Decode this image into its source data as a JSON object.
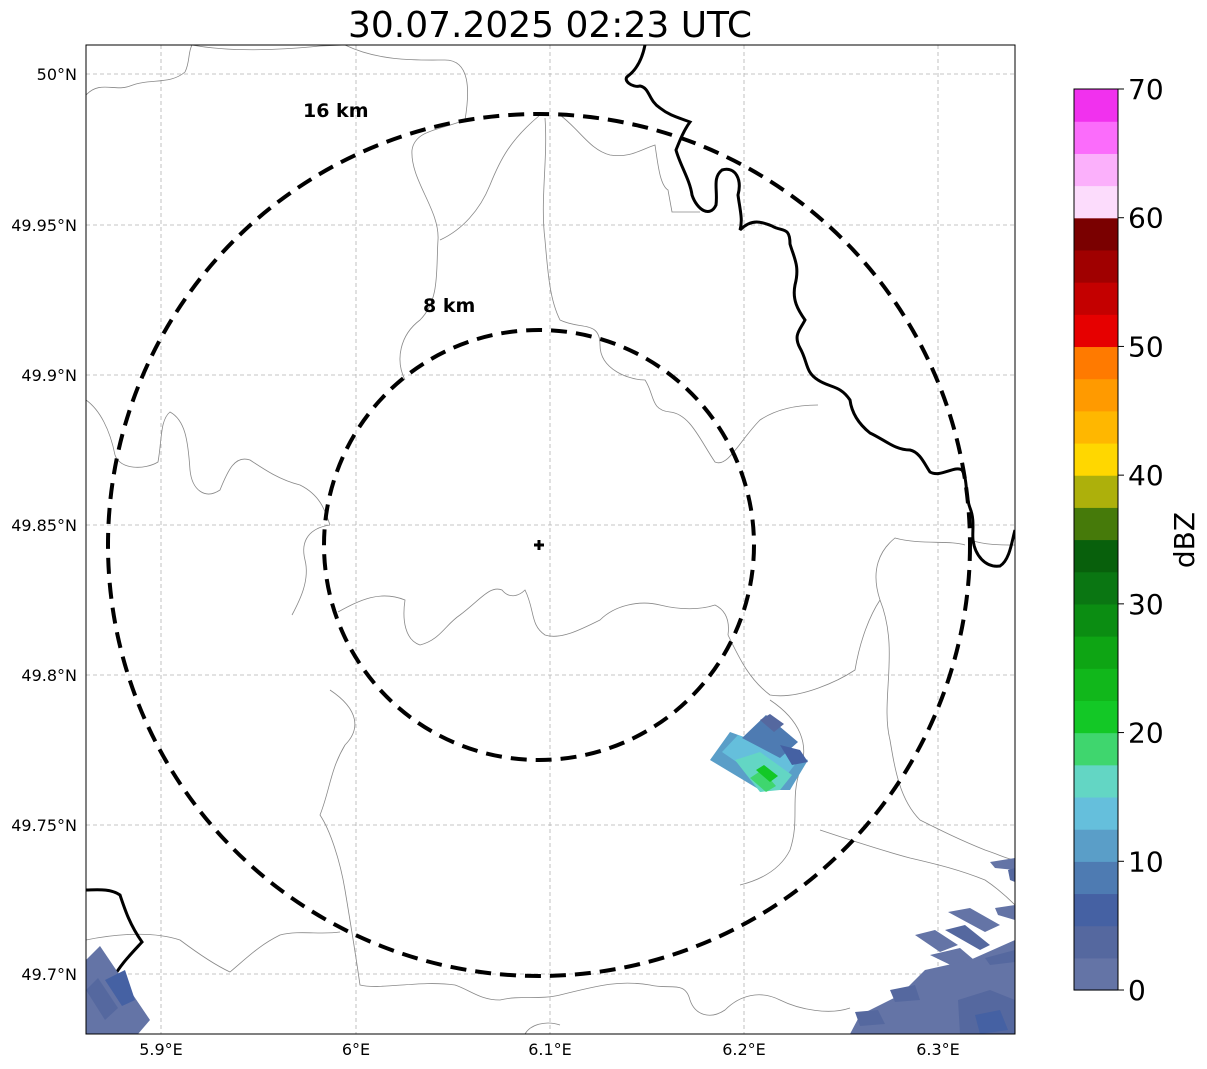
{
  "title": "30.07.2025 02:23 UTC",
  "map": {
    "lon_ticks": [
      "5.9°E",
      "6°E",
      "6.1°E",
      "6.2°E",
      "6.3°E"
    ],
    "lat_ticks": [
      "50°N",
      "49.95°N",
      "49.9°N",
      "49.85°N",
      "49.8°N",
      "49.75°N",
      "49.7°N"
    ],
    "range_rings": [
      {
        "label": "8 km",
        "radius_km": 8
      },
      {
        "label": "16 km",
        "radius_km": 16
      }
    ],
    "radar_marker": "plus-icon",
    "grid": true
  },
  "colorbar": {
    "label": "dBZ",
    "ticks": [
      "0",
      "10",
      "20",
      "30",
      "40",
      "50",
      "60",
      "70"
    ],
    "min": 0,
    "max": 70,
    "step": 2.5,
    "colors": [
      "#6474a6",
      "#55689f",
      "#4561a3",
      "#4e7bb2",
      "#5a9ec8",
      "#65bfdc",
      "#63d6c4",
      "#3fd66e",
      "#13c826",
      "#11b71b",
      "#0ea514",
      "#0b8d12",
      "#0a7612",
      "#08600c",
      "#467a0a",
      "#adb00b",
      "#ffd700",
      "#ffb700",
      "#ff9a00",
      "#ff7a00",
      "#e60000",
      "#c40000",
      "#a00000",
      "#7a0000",
      "#fcdcfc",
      "#fbb0fb",
      "#fb6cfb",
      "#f131ee"
    ]
  }
}
